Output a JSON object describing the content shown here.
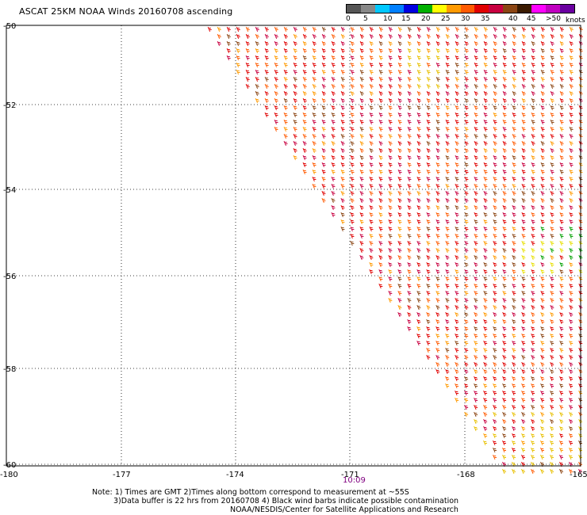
{
  "title": "ASCAT 25KM NOAA Winds 20160708 ascending",
  "legend": {
    "labels": [
      "0",
      "5",
      "10",
      "15",
      "20",
      "25",
      "30",
      "35",
      "40",
      "45"
    ],
    "overflow_label": ">50",
    "unit": "knots",
    "colors": [
      "#555555",
      "#888888",
      "#00c8ff",
      "#0080ff",
      "#0000e0",
      "#00b000",
      "#ffff00",
      "#ff9a00",
      "#ff5a00",
      "#e00000",
      "#c80040",
      "#8b4513",
      "#3a1a00",
      "#ff00ff",
      "#c000c0",
      "#6a00a0"
    ]
  },
  "axes": {
    "lat_labels": [
      "-50",
      "-52",
      "-54",
      "-56",
      "-58",
      "-60"
    ],
    "lon_labels": [
      "-180",
      "-177",
      "-174",
      "-171",
      "-168",
      "-165"
    ]
  },
  "pass_time": "10:09",
  "notes": [
    "Note: 1) Times are GMT 2)Times along bottom correspond to measurement at ~55S",
    "3)Data buffer is 22 hrs from 20160708 4) Black wind barbs indicate possible contamination",
    "NOAA/NESDIS/Center for Satellite Applications and Research"
  ]
}
